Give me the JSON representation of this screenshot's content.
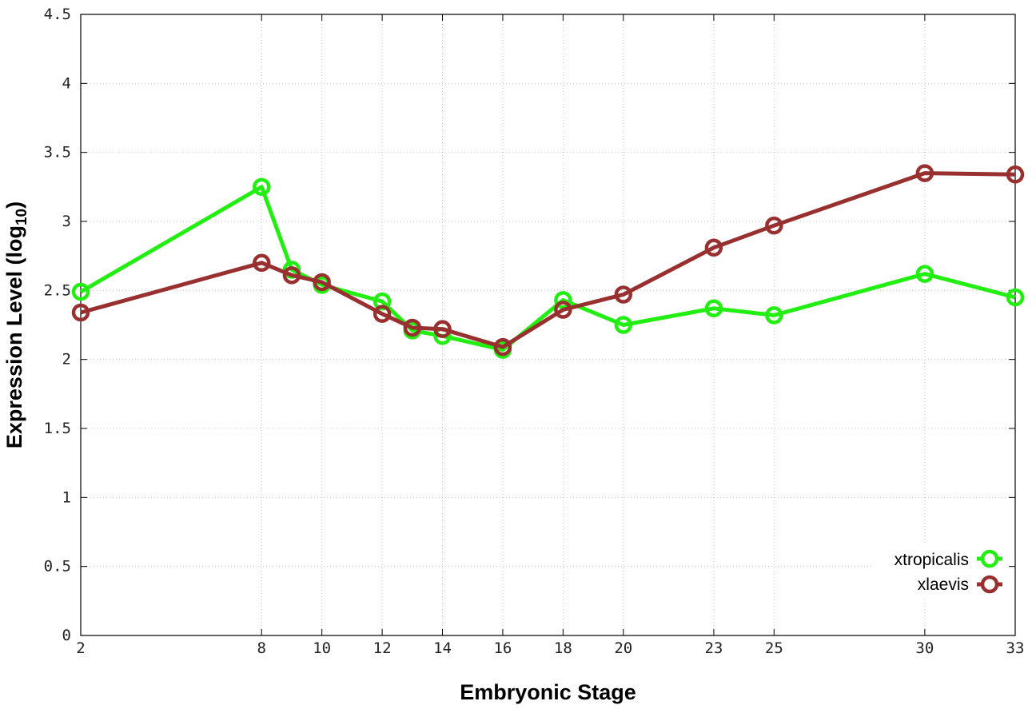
{
  "chart_data": {
    "type": "line",
    "xlabel": "Embryonic Stage",
    "ylabel_main": "Expression Level (log",
    "ylabel_sub": "10",
    "ylabel_close": ")",
    "x": [
      2,
      8,
      9,
      10,
      12,
      13,
      14,
      16,
      18,
      20,
      23,
      25,
      30,
      33
    ],
    "x_ticks": [
      2,
      8,
      10,
      12,
      14,
      16,
      18,
      20,
      23,
      25,
      30,
      33
    ],
    "y_ticks": [
      "0",
      "0.5",
      "1",
      "1.5",
      "2",
      "2.5",
      "3",
      "3.5",
      "4",
      "4.5"
    ],
    "ylim": [
      0,
      4.5
    ],
    "grid": true,
    "legend_position": "bottom-right",
    "series": [
      {
        "name": "xtropicalis",
        "color": "#22ee11",
        "values": [
          2.49,
          3.25,
          2.65,
          2.54,
          2.42,
          2.21,
          2.17,
          2.07,
          2.43,
          2.25,
          2.37,
          2.32,
          2.62,
          2.45
        ]
      },
      {
        "name": "xlaevis",
        "color": "#993030",
        "values": [
          2.34,
          2.7,
          2.61,
          2.56,
          2.33,
          2.23,
          2.22,
          2.09,
          2.36,
          2.47,
          2.81,
          2.97,
          3.35,
          3.34
        ]
      }
    ]
  }
}
